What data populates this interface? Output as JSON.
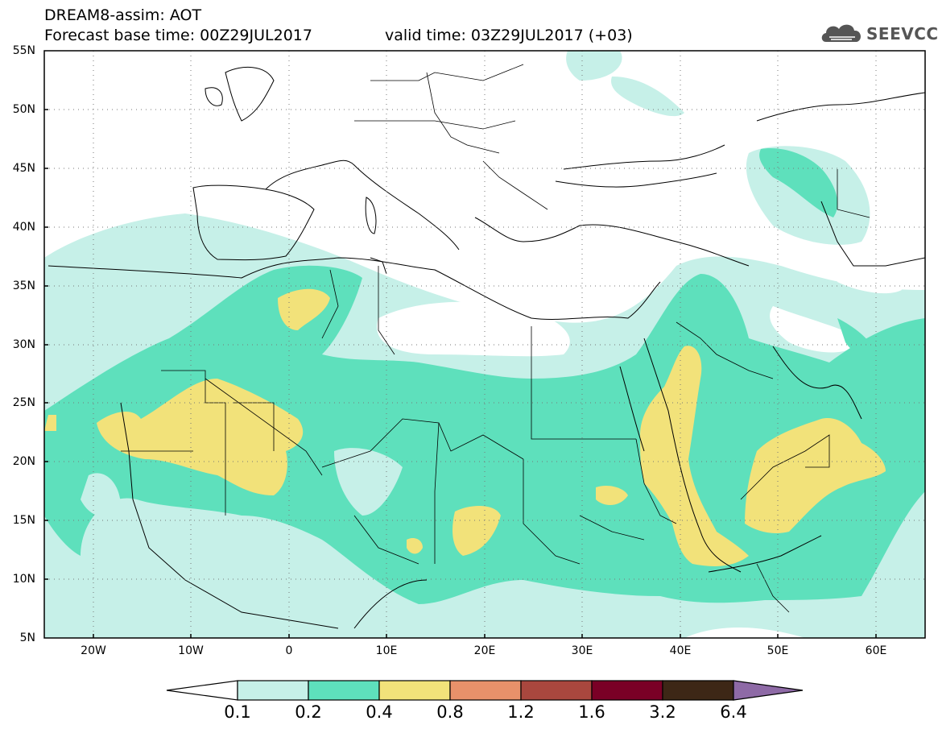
{
  "header": {
    "line1": "DREAM8-assim: AOT",
    "line2": "Forecast base time: 00Z29JUL2017",
    "valid": "valid time: 03Z29JUL2017 (+03)"
  },
  "logo": {
    "text": "SEEVCCC",
    "icon": "cloud-icon"
  },
  "map": {
    "lat_labels": [
      "55N",
      "50N",
      "45N",
      "40N",
      "35N",
      "30N",
      "25N",
      "20N",
      "15N",
      "10N",
      "5N"
    ],
    "lon_labels": [
      "20W",
      "10W",
      "0",
      "10E",
      "20E",
      "30E",
      "40E",
      "50E",
      "60E"
    ],
    "lat_range": [
      5,
      55
    ],
    "lon_range": [
      -25,
      65
    ],
    "grid": "dotted"
  },
  "colorbar": {
    "labels": [
      "0.1",
      "0.2",
      "0.4",
      "0.8",
      "1.2",
      "1.6",
      "3.2",
      "6.4"
    ],
    "colors": [
      "#ffffff",
      "#c6f0e8",
      "#5ee0bc",
      "#f2e27a",
      "#e8916a",
      "#a9473e",
      "#7a0026",
      "#3d2716",
      "#8e6aa6"
    ]
  },
  "fills": {
    "light": "#c6f0e8",
    "medium": "#5ee0bc",
    "high": "#f2e27a"
  }
}
